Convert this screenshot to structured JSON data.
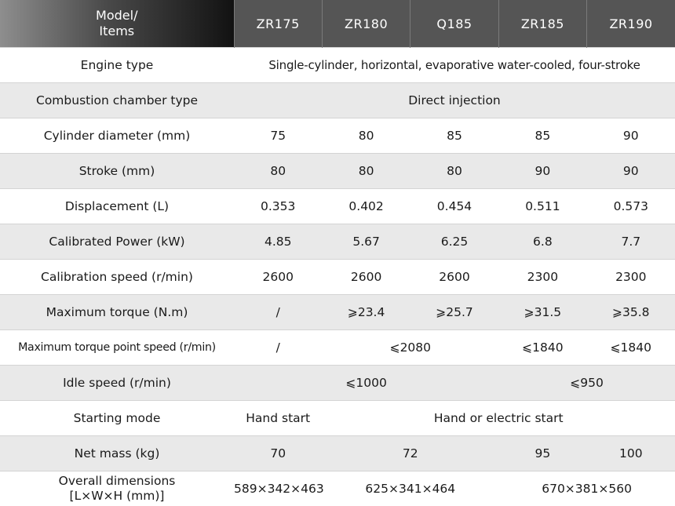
{
  "header": {
    "corner_line1": "Model/",
    "corner_line2": "Items",
    "models": [
      "ZR175",
      "ZR180",
      "Q185",
      "ZR185",
      "ZR190"
    ]
  },
  "rows": {
    "engine_type": {
      "label": "Engine type",
      "value": "Single-cylinder, horizontal, evaporative water-cooled, four-stroke"
    },
    "combustion": {
      "label": "Combustion chamber type",
      "value": "Direct injection"
    },
    "cylinder": {
      "label": "Cylinder diameter (mm)",
      "values": [
        "75",
        "80",
        "85",
        "85",
        "90"
      ]
    },
    "stroke": {
      "label": "Stroke (mm)",
      "values": [
        "80",
        "80",
        "80",
        "90",
        "90"
      ]
    },
    "displacement": {
      "label": "Displacement (L)",
      "values": [
        "0.353",
        "0.402",
        "0.454",
        "0.511",
        "0.573"
      ]
    },
    "power": {
      "label": "Calibrated Power (kW)",
      "values": [
        "4.85",
        "5.67",
        "6.25",
        "6.8",
        "7.7"
      ]
    },
    "speed": {
      "label": "Calibration speed (r/min)",
      "values": [
        "2600",
        "2600",
        "2600",
        "2300",
        "2300"
      ]
    },
    "torque": {
      "label": "Maximum torque (N.m)",
      "values": [
        "/",
        "⩾23.4",
        "⩾25.7",
        "⩾31.5",
        "⩾35.8"
      ]
    },
    "torque_speed": {
      "label": "Maximum torque point speed (r/min)",
      "v1": "/",
      "v2": "⩽2080",
      "v3": "⩽1840",
      "v4": "⩽1840"
    },
    "idle": {
      "label": "Idle speed (r/min)",
      "v1": "⩽1000",
      "v2": "⩽950"
    },
    "starting": {
      "label": "Starting mode",
      "v1": "Hand start",
      "v2": "Hand or electric start"
    },
    "mass": {
      "label": "Net mass (kg)",
      "v1": "70",
      "v2": "72",
      "v3": "95",
      "v4": "100"
    },
    "dimensions": {
      "label_line1": "Overall dimensions",
      "label_line2": "[L×W×H (mm)]",
      "v1": "589×342×463",
      "v2": "625×341×464",
      "v3": "670×381×560"
    }
  }
}
